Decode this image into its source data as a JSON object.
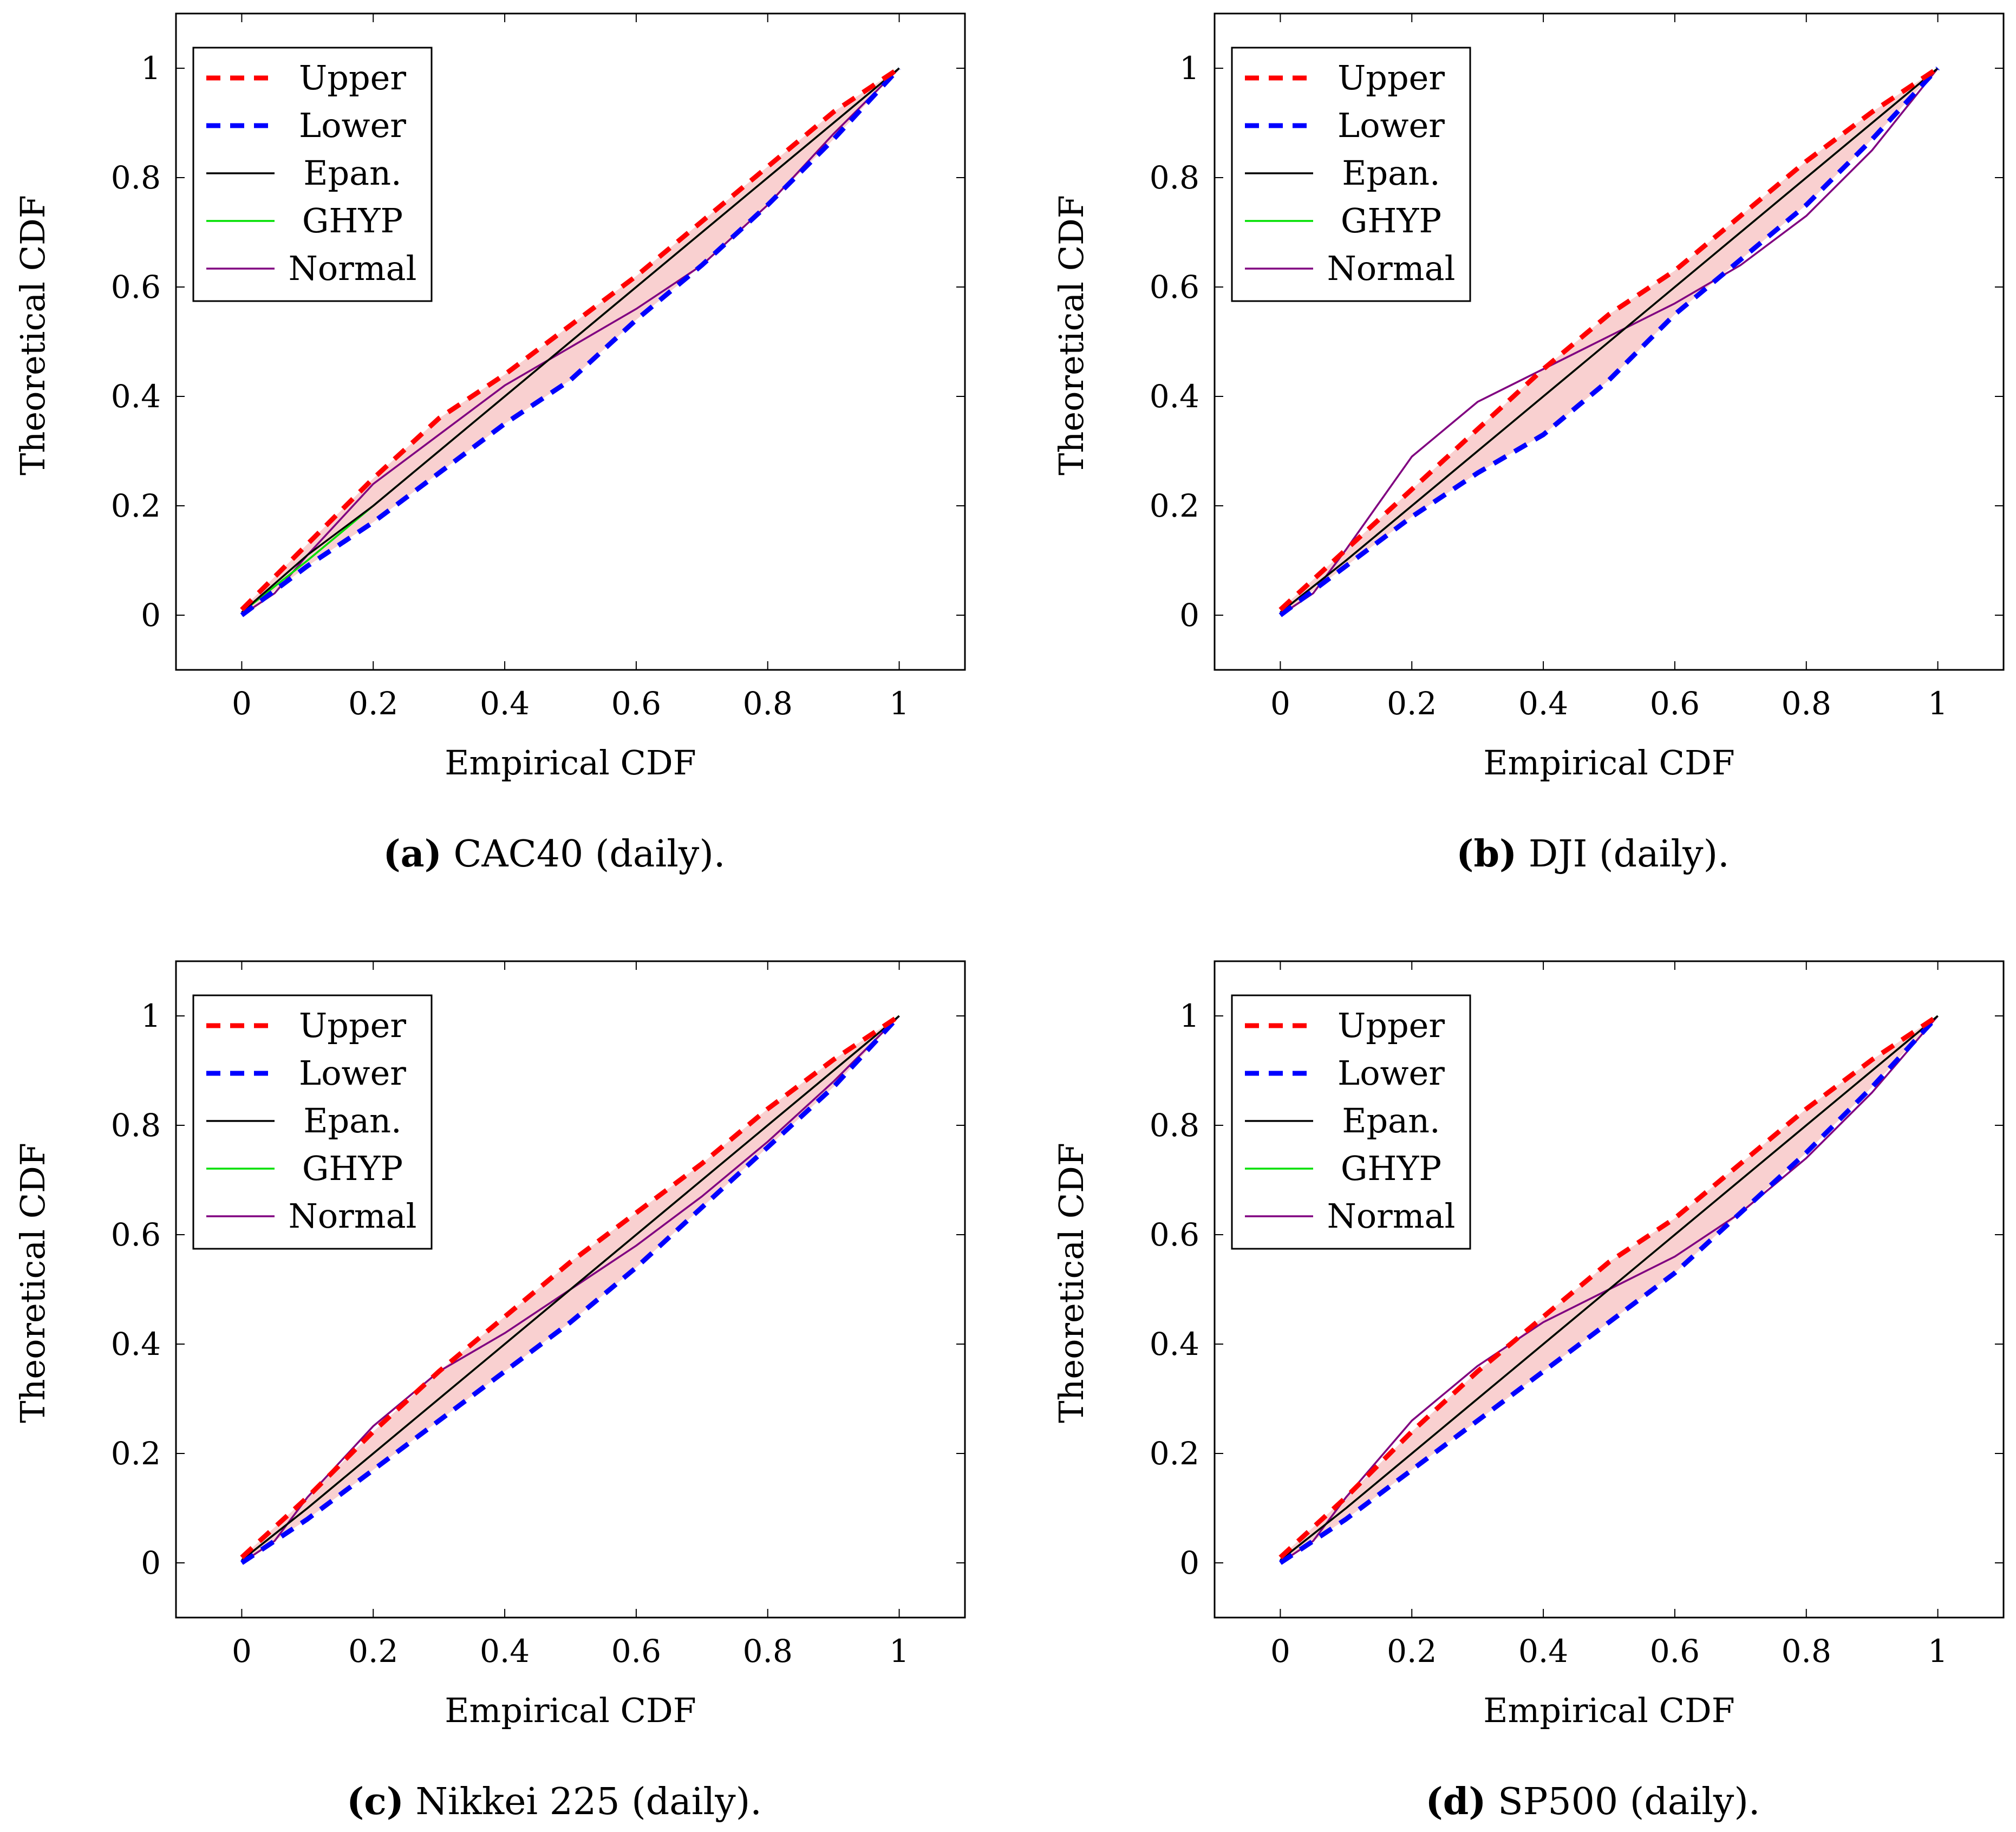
{
  "chart_data": [
    {
      "type": "line",
      "tag": "(a)",
      "caption": "CAC40 (daily).",
      "xlabel": "Empirical CDF",
      "ylabel": "Theoretical CDF",
      "xlim": [
        -0.1,
        1.1
      ],
      "ylim": [
        -0.1,
        1.1
      ],
      "xticks": [
        "0",
        "0.2",
        "0.4",
        "0.6",
        "0.8",
        "1"
      ],
      "yticks": [
        "0",
        "0.2",
        "0.4",
        "0.6",
        "0.8",
        "1"
      ],
      "legend_position": "top-left",
      "band_color": "#f8c8c8",
      "series": [
        {
          "name": "Upper",
          "color": "#ff0000",
          "dash": true,
          "x": [
            0,
            0.1,
            0.2,
            0.3,
            0.4,
            0.5,
            0.6,
            0.7,
            0.8,
            0.9,
            1
          ],
          "y": [
            0.01,
            0.13,
            0.25,
            0.36,
            0.44,
            0.53,
            0.62,
            0.72,
            0.82,
            0.92,
            1
          ]
        },
        {
          "name": "Lower",
          "color": "#0000ff",
          "dash": true,
          "x": [
            0,
            0.1,
            0.2,
            0.3,
            0.4,
            0.5,
            0.6,
            0.7,
            0.8,
            0.9,
            1
          ],
          "y": [
            0,
            0.09,
            0.17,
            0.26,
            0.35,
            0.43,
            0.54,
            0.64,
            0.75,
            0.87,
            1
          ]
        },
        {
          "name": "Epan.",
          "color": "#000000",
          "dash": false,
          "x": [
            0,
            0.1,
            0.2,
            0.3,
            0.4,
            0.5,
            0.6,
            0.7,
            0.8,
            0.9,
            1
          ],
          "y": [
            0.005,
            0.11,
            0.2,
            0.3,
            0.4,
            0.5,
            0.6,
            0.7,
            0.8,
            0.9,
            1
          ]
        },
        {
          "name": "GHYP",
          "color": "#00e000",
          "dash": false,
          "x": [
            0,
            0.1,
            0.2,
            0.3,
            0.4,
            0.5,
            0.6,
            0.7,
            0.8,
            0.9,
            1
          ],
          "y": [
            0.005,
            0.1,
            0.2,
            0.3,
            0.4,
            0.5,
            0.6,
            0.7,
            0.8,
            0.9,
            1
          ]
        },
        {
          "name": "Normal",
          "color": "#800080",
          "dash": false,
          "x": [
            0,
            0.05,
            0.1,
            0.2,
            0.3,
            0.4,
            0.5,
            0.6,
            0.7,
            0.8,
            0.9,
            1
          ],
          "y": [
            0,
            0.04,
            0.11,
            0.24,
            0.33,
            0.42,
            0.49,
            0.56,
            0.64,
            0.75,
            0.88,
            1
          ]
        }
      ]
    },
    {
      "type": "line",
      "tag": "(b)",
      "caption": "DJI (daily).",
      "xlabel": "Empirical CDF",
      "ylabel": "Theoretical CDF",
      "xlim": [
        -0.1,
        1.1
      ],
      "ylim": [
        -0.1,
        1.1
      ],
      "xticks": [
        "0",
        "0.2",
        "0.4",
        "0.6",
        "0.8",
        "1"
      ],
      "yticks": [
        "0",
        "0.2",
        "0.4",
        "0.6",
        "0.8",
        "1"
      ],
      "legend_position": "top-left",
      "band_color": "#f8c8c8",
      "series": [
        {
          "name": "Upper",
          "color": "#ff0000",
          "dash": true,
          "x": [
            0,
            0.1,
            0.2,
            0.3,
            0.4,
            0.5,
            0.6,
            0.7,
            0.8,
            0.9,
            1
          ],
          "y": [
            0.01,
            0.12,
            0.23,
            0.34,
            0.45,
            0.55,
            0.63,
            0.73,
            0.83,
            0.92,
            1
          ]
        },
        {
          "name": "Lower",
          "color": "#0000ff",
          "dash": true,
          "x": [
            0,
            0.1,
            0.2,
            0.3,
            0.4,
            0.5,
            0.6,
            0.7,
            0.8,
            0.9,
            1
          ],
          "y": [
            0,
            0.09,
            0.18,
            0.26,
            0.33,
            0.43,
            0.55,
            0.65,
            0.75,
            0.87,
            1
          ]
        },
        {
          "name": "Epan.",
          "color": "#000000",
          "dash": false,
          "x": [
            0,
            0.1,
            0.2,
            0.3,
            0.4,
            0.5,
            0.6,
            0.7,
            0.8,
            0.9,
            1
          ],
          "y": [
            0.005,
            0.1,
            0.2,
            0.3,
            0.4,
            0.5,
            0.6,
            0.7,
            0.8,
            0.9,
            1
          ]
        },
        {
          "name": "GHYP",
          "color": "#00e000",
          "dash": false,
          "x": [
            0,
            0.1,
            0.2,
            0.3,
            0.4,
            0.5,
            0.6,
            0.7,
            0.8,
            0.9,
            1
          ],
          "y": [
            0.005,
            0.1,
            0.2,
            0.3,
            0.4,
            0.5,
            0.6,
            0.7,
            0.8,
            0.9,
            1
          ]
        },
        {
          "name": "Normal",
          "color": "#800080",
          "dash": false,
          "x": [
            0,
            0.05,
            0.1,
            0.2,
            0.3,
            0.4,
            0.5,
            0.6,
            0.7,
            0.8,
            0.9,
            1
          ],
          "y": [
            0,
            0.04,
            0.12,
            0.29,
            0.39,
            0.45,
            0.51,
            0.57,
            0.64,
            0.73,
            0.85,
            1
          ]
        }
      ]
    },
    {
      "type": "line",
      "tag": "(c)",
      "caption": "Nikkei 225 (daily).",
      "xlabel": "Empirical CDF",
      "ylabel": "Theoretical CDF",
      "xlim": [
        -0.1,
        1.1
      ],
      "ylim": [
        -0.1,
        1.1
      ],
      "xticks": [
        "0",
        "0.2",
        "0.4",
        "0.6",
        "0.8",
        "1"
      ],
      "yticks": [
        "0",
        "0.2",
        "0.4",
        "0.6",
        "0.8",
        "1"
      ],
      "legend_position": "top-left",
      "band_color": "#f8c8c8",
      "series": [
        {
          "name": "Upper",
          "color": "#ff0000",
          "dash": true,
          "x": [
            0,
            0.1,
            0.2,
            0.3,
            0.4,
            0.5,
            0.6,
            0.7,
            0.8,
            0.9,
            1
          ],
          "y": [
            0.01,
            0.12,
            0.24,
            0.35,
            0.45,
            0.55,
            0.64,
            0.73,
            0.83,
            0.92,
            1
          ]
        },
        {
          "name": "Lower",
          "color": "#0000ff",
          "dash": true,
          "x": [
            0,
            0.1,
            0.2,
            0.3,
            0.4,
            0.5,
            0.6,
            0.7,
            0.8,
            0.9,
            1
          ],
          "y": [
            0,
            0.08,
            0.17,
            0.26,
            0.35,
            0.44,
            0.54,
            0.65,
            0.76,
            0.87,
            1
          ]
        },
        {
          "name": "Epan.",
          "color": "#000000",
          "dash": false,
          "x": [
            0,
            0.1,
            0.2,
            0.3,
            0.4,
            0.5,
            0.6,
            0.7,
            0.8,
            0.9,
            1
          ],
          "y": [
            0.005,
            0.1,
            0.2,
            0.3,
            0.4,
            0.5,
            0.6,
            0.7,
            0.8,
            0.9,
            1
          ]
        },
        {
          "name": "GHYP",
          "color": "#00e000",
          "dash": false,
          "x": [
            0,
            0.1,
            0.2,
            0.3,
            0.4,
            0.5,
            0.6,
            0.7,
            0.8,
            0.9,
            1
          ],
          "y": [
            0.005,
            0.1,
            0.2,
            0.3,
            0.4,
            0.5,
            0.6,
            0.7,
            0.8,
            0.9,
            1
          ]
        },
        {
          "name": "Normal",
          "color": "#800080",
          "dash": false,
          "x": [
            0,
            0.05,
            0.1,
            0.2,
            0.3,
            0.4,
            0.5,
            0.6,
            0.7,
            0.8,
            0.9,
            1
          ],
          "y": [
            0,
            0.04,
            0.12,
            0.25,
            0.35,
            0.42,
            0.5,
            0.58,
            0.67,
            0.77,
            0.88,
            1
          ]
        }
      ]
    },
    {
      "type": "line",
      "tag": "(d)",
      "caption": "SP500 (daily).",
      "xlabel": "Empirical CDF",
      "ylabel": "Theoretical CDF",
      "xlim": [
        -0.1,
        1.1
      ],
      "ylim": [
        -0.1,
        1.1
      ],
      "xticks": [
        "0",
        "0.2",
        "0.4",
        "0.6",
        "0.8",
        "1"
      ],
      "yticks": [
        "0",
        "0.2",
        "0.4",
        "0.6",
        "0.8",
        "1"
      ],
      "legend_position": "top-left",
      "band_color": "#f8c8c8",
      "series": [
        {
          "name": "Upper",
          "color": "#ff0000",
          "dash": true,
          "x": [
            0,
            0.1,
            0.2,
            0.3,
            0.4,
            0.5,
            0.6,
            0.7,
            0.8,
            0.9,
            1
          ],
          "y": [
            0.01,
            0.12,
            0.24,
            0.35,
            0.45,
            0.55,
            0.63,
            0.73,
            0.83,
            0.92,
            1
          ]
        },
        {
          "name": "Lower",
          "color": "#0000ff",
          "dash": true,
          "x": [
            0,
            0.1,
            0.2,
            0.3,
            0.4,
            0.5,
            0.6,
            0.7,
            0.8,
            0.9,
            1
          ],
          "y": [
            0,
            0.08,
            0.17,
            0.26,
            0.35,
            0.44,
            0.53,
            0.64,
            0.75,
            0.87,
            1
          ]
        },
        {
          "name": "Epan.",
          "color": "#000000",
          "dash": false,
          "x": [
            0,
            0.1,
            0.2,
            0.3,
            0.4,
            0.5,
            0.6,
            0.7,
            0.8,
            0.9,
            1
          ],
          "y": [
            0.005,
            0.1,
            0.2,
            0.3,
            0.4,
            0.5,
            0.6,
            0.7,
            0.8,
            0.9,
            1
          ]
        },
        {
          "name": "GHYP",
          "color": "#00e000",
          "dash": false,
          "x": [
            0,
            0.1,
            0.2,
            0.3,
            0.4,
            0.5,
            0.6,
            0.7,
            0.8,
            0.9,
            1
          ],
          "y": [
            0.005,
            0.1,
            0.2,
            0.3,
            0.4,
            0.5,
            0.6,
            0.7,
            0.8,
            0.9,
            1
          ]
        },
        {
          "name": "Normal",
          "color": "#800080",
          "dash": false,
          "x": [
            0,
            0.05,
            0.1,
            0.2,
            0.3,
            0.4,
            0.5,
            0.6,
            0.7,
            0.8,
            0.9,
            1
          ],
          "y": [
            0,
            0.04,
            0.12,
            0.26,
            0.36,
            0.44,
            0.5,
            0.56,
            0.64,
            0.74,
            0.86,
            1
          ]
        }
      ]
    }
  ]
}
